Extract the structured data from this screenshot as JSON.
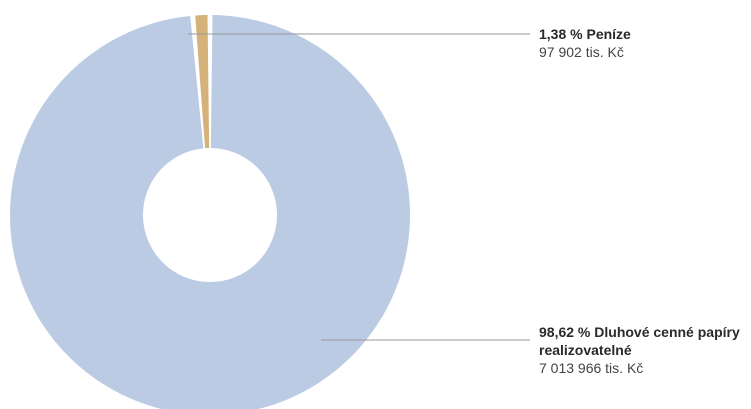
{
  "chart_data": {
    "type": "pie",
    "donut": true,
    "slices": [
      {
        "percent_label": "1,38 %",
        "name": "Peníze",
        "value_label": "97 902 tis. Kč",
        "value": 97902,
        "percent": 1.38,
        "color": "#d4b27a"
      },
      {
        "percent_label": "98,62 %",
        "name": "Dluhové cenné papíry realizovatelné",
        "value_label": "7 013 966 tis. Kč",
        "value": 7013966,
        "percent": 98.62,
        "color": "#bccbe4"
      }
    ],
    "leader_line_color": "#9a9a9a"
  }
}
